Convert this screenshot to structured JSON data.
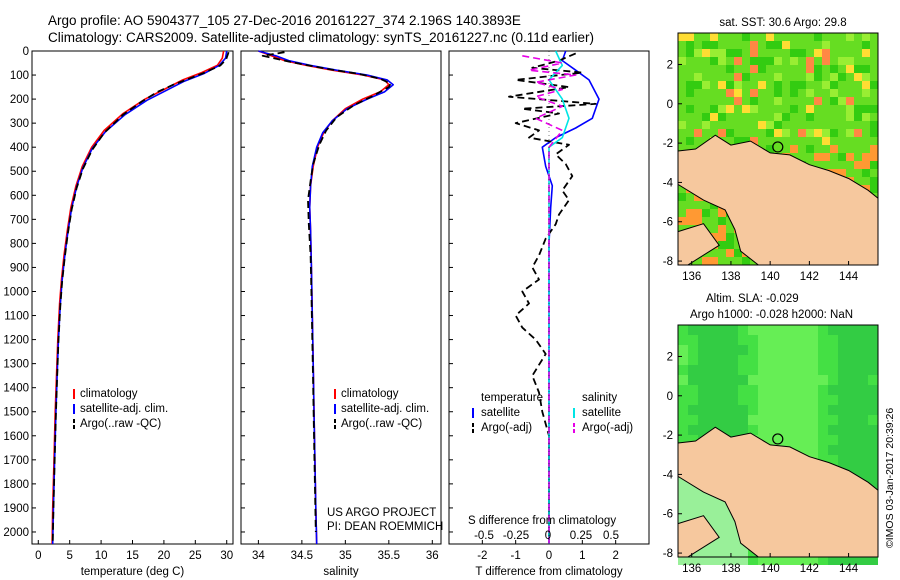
{
  "title": {
    "line1": "Argo profile: AO 5904377_105 27-Dec-2016 20161227_374 2.196S 140.3893E",
    "line2": "Climatology: CARS2009. Satellite-adjusted climatology: synTS_20161227.nc (0.11d earlier)"
  },
  "footer_stamp": "©IMOS 03-Jan-2017 20:39:26",
  "colors": {
    "climatology": "#ff0000",
    "satellite": "#0000ff",
    "argo": "#000000",
    "sal_satellite": "#00e5e5",
    "sal_argo": "#e600e6"
  },
  "depth_axis": {
    "ylim": [
      0,
      2050
    ],
    "ticks": [
      0,
      100,
      200,
      300,
      400,
      500,
      600,
      700,
      800,
      900,
      1000,
      1100,
      1200,
      1300,
      1400,
      1500,
      1600,
      1700,
      1800,
      1900,
      2000
    ]
  },
  "chart_data": [
    {
      "id": "temperature",
      "type": "line",
      "xlabel": "temperature (deg C)",
      "xlim": [
        -1,
        31
      ],
      "xticks": [
        0,
        5,
        10,
        15,
        20,
        25,
        30
      ],
      "legend": {
        "position": "lower-right",
        "entries": [
          "climatology",
          "satellite-adj. clim.",
          "Argo(..raw -QC)"
        ]
      },
      "series": [
        {
          "name": "climatology",
          "color": "#ff0000",
          "points": [
            [
              29.5,
              0
            ],
            [
              29.3,
              30
            ],
            [
              28.5,
              60
            ],
            [
              26,
              90
            ],
            [
              23,
              120
            ],
            [
              20,
              160
            ],
            [
              17,
              200
            ],
            [
              13.5,
              260
            ],
            [
              10.5,
              330
            ],
            [
              8.5,
              400
            ],
            [
              7,
              480
            ],
            [
              6,
              560
            ],
            [
              5.2,
              650
            ],
            [
              4.6,
              750
            ],
            [
              4.1,
              850
            ],
            [
              3.7,
              950
            ],
            [
              3.4,
              1050
            ],
            [
              3.1,
              1200
            ],
            [
              2.9,
              1350
            ],
            [
              2.7,
              1500
            ],
            [
              2.5,
              1700
            ],
            [
              2.3,
              1900
            ],
            [
              2.2,
              2050
            ]
          ]
        },
        {
          "name": "satellite-adj. clim.",
          "color": "#0000ff",
          "points": [
            [
              30,
              0
            ],
            [
              29.8,
              30
            ],
            [
              28.8,
              60
            ],
            [
              26.3,
              95
            ],
            [
              23.3,
              125
            ],
            [
              20.3,
              165
            ],
            [
              17.3,
              205
            ],
            [
              13.8,
              265
            ],
            [
              10.7,
              335
            ],
            [
              8.6,
              405
            ],
            [
              7.1,
              485
            ],
            [
              6.1,
              565
            ],
            [
              5.3,
              655
            ],
            [
              4.7,
              755
            ],
            [
              4.2,
              855
            ],
            [
              3.8,
              955
            ],
            [
              3.5,
              1055
            ],
            [
              3.2,
              1205
            ],
            [
              3,
              1355
            ],
            [
              2.8,
              1505
            ],
            [
              2.6,
              1705
            ],
            [
              2.4,
              1905
            ],
            [
              2.3,
              2050
            ]
          ]
        },
        {
          "name": "Argo(..raw -QC)",
          "color": "#000000",
          "points": [
            [
              30.3,
              5
            ],
            [
              29.9,
              35
            ],
            [
              29,
              60
            ],
            [
              26.5,
              90
            ],
            [
              24,
              115
            ],
            [
              21.5,
              140
            ],
            [
              19,
              170
            ],
            [
              16.5,
              210
            ],
            [
              13.5,
              265
            ],
            [
              10.5,
              340
            ],
            [
              8.6,
              410
            ],
            [
              7.1,
              490
            ],
            [
              6.1,
              570
            ],
            [
              5.3,
              660
            ],
            [
              4.7,
              760
            ],
            [
              4.2,
              860
            ],
            [
              3.8,
              960
            ],
            [
              3.5,
              1060
            ],
            [
              3.2,
              1210
            ],
            [
              3,
              1360
            ],
            [
              2.8,
              1510
            ],
            [
              2.6,
              1710
            ],
            [
              2.4,
              1910
            ],
            [
              2.3,
              2050
            ]
          ]
        }
      ]
    },
    {
      "id": "salinity",
      "type": "line",
      "xlabel": "salinity",
      "xlim": [
        33.8,
        36.1
      ],
      "xticks": [
        34,
        34.5,
        35,
        35.5,
        36
      ],
      "legend": {
        "position": "lower-right",
        "entries": [
          "climatology",
          "satellite-adj. clim.",
          "Argo(..raw -QC)"
        ]
      },
      "annotation": {
        "line1": "US ARGO PROJECT",
        "line2": "PI: DEAN ROEMMICH"
      },
      "series": [
        {
          "name": "climatology",
          "color": "#ff0000",
          "points": [
            [
              34,
              0
            ],
            [
              34.15,
              20
            ],
            [
              34.3,
              40
            ],
            [
              34.55,
              60
            ],
            [
              34.85,
              80
            ],
            [
              35.2,
              100
            ],
            [
              35.45,
              120
            ],
            [
              35.5,
              140
            ],
            [
              35.4,
              170
            ],
            [
              35.2,
              200
            ],
            [
              35,
              240
            ],
            [
              34.85,
              290
            ],
            [
              34.75,
              340
            ],
            [
              34.68,
              400
            ],
            [
              34.63,
              480
            ],
            [
              34.6,
              560
            ],
            [
              34.59,
              650
            ],
            [
              34.6,
              750
            ],
            [
              34.61,
              900
            ],
            [
              34.62,
              1100
            ],
            [
              34.63,
              1300
            ],
            [
              34.64,
              1500
            ],
            [
              34.65,
              1700
            ],
            [
              34.66,
              1900
            ],
            [
              34.67,
              2050
            ]
          ]
        },
        {
          "name": "satellite-adj. clim.",
          "color": "#0000ff",
          "points": [
            [
              34,
              0
            ],
            [
              34.2,
              20
            ],
            [
              34.35,
              40
            ],
            [
              34.6,
              60
            ],
            [
              34.9,
              80
            ],
            [
              35.25,
              100
            ],
            [
              35.48,
              120
            ],
            [
              35.55,
              140
            ],
            [
              35.45,
              170
            ],
            [
              35.25,
              200
            ],
            [
              35.02,
              240
            ],
            [
              34.85,
              290
            ],
            [
              34.74,
              340
            ],
            [
              34.67,
              400
            ],
            [
              34.62,
              480
            ],
            [
              34.6,
              560
            ],
            [
              34.59,
              650
            ],
            [
              34.6,
              750
            ],
            [
              34.61,
              900
            ],
            [
              34.62,
              1100
            ],
            [
              34.63,
              1300
            ],
            [
              34.64,
              1500
            ],
            [
              34.65,
              1700
            ],
            [
              34.66,
              1900
            ],
            [
              34.67,
              2050
            ]
          ]
        },
        {
          "name": "Argo(..raw -QC)",
          "color": "#000000",
          "points": [
            [
              34.3,
              5
            ],
            [
              34.05,
              20
            ],
            [
              34.3,
              40
            ],
            [
              34.5,
              55
            ],
            [
              34.8,
              75
            ],
            [
              35.15,
              95
            ],
            [
              35.4,
              115
            ],
            [
              35.52,
              135
            ],
            [
              35.5,
              150
            ],
            [
              35.3,
              190
            ],
            [
              35.1,
              225
            ],
            [
              34.9,
              275
            ],
            [
              34.78,
              330
            ],
            [
              34.7,
              390
            ],
            [
              34.63,
              470
            ],
            [
              34.6,
              540
            ],
            [
              34.57,
              620
            ],
            [
              34.58,
              720
            ],
            [
              34.6,
              850
            ],
            [
              34.61,
              1000
            ],
            [
              34.62,
              1200
            ],
            [
              34.63,
              1400
            ],
            [
              34.64,
              1600
            ],
            [
              34.65,
              1800
            ],
            [
              34.66,
              2000
            ]
          ]
        }
      ]
    },
    {
      "id": "difference",
      "type": "line",
      "xlabel": "T difference from climatology",
      "xlim": [
        -3,
        3
      ],
      "xticks": [
        -2,
        -1,
        0,
        1,
        2
      ],
      "top_axis": {
        "label": "S difference from climatology",
        "ticks": [
          "-0.5",
          "-0.25",
          "0",
          "0.25",
          "0.5"
        ]
      },
      "legend": {
        "position": "lower",
        "temperature_header": "temperature",
        "salinity_header": "salinity",
        "entries": [
          "satellite",
          "Argo(-adj)",
          "satellite",
          "Argo(-adj)"
        ]
      },
      "series": [
        {
          "name": "satellite",
          "group": "temperature",
          "color": "#0000ff",
          "points": [
            [
              0.5,
              0
            ],
            [
              0.4,
              40
            ],
            [
              0.8,
              80
            ],
            [
              1.2,
              120
            ],
            [
              1.5,
              200
            ],
            [
              1.3,
              280
            ],
            [
              0.8,
              320
            ],
            [
              0.2,
              360
            ],
            [
              -0.2,
              400
            ],
            [
              -0.1,
              480
            ],
            [
              0.1,
              560
            ],
            [
              0.05,
              650
            ],
            [
              0,
              800
            ],
            [
              0,
              1000
            ],
            [
              0,
              1500
            ],
            [
              0,
              2050
            ]
          ]
        },
        {
          "name": "Argo(-adj)",
          "group": "temperature",
          "color": "#000000",
          "points": [
            [
              0.8,
              10
            ],
            [
              0.3,
              40
            ],
            [
              -0.5,
              70
            ],
            [
              1,
              90
            ],
            [
              -1,
              120
            ],
            [
              0.6,
              150
            ],
            [
              -1.2,
              190
            ],
            [
              1.4,
              220
            ],
            [
              -0.8,
              240
            ],
            [
              0.3,
              260
            ],
            [
              -1,
              300
            ],
            [
              -0.3,
              330
            ],
            [
              -0.6,
              360
            ],
            [
              0.6,
              390
            ],
            [
              0.2,
              430
            ],
            [
              0.5,
              470
            ],
            [
              0.7,
              520
            ],
            [
              0.4,
              580
            ],
            [
              0.6,
              620
            ],
            [
              0.3,
              680
            ],
            [
              0.2,
              720
            ],
            [
              -0.1,
              780
            ],
            [
              -0.3,
              850
            ],
            [
              -0.5,
              900
            ],
            [
              -0.3,
              950
            ],
            [
              -0.8,
              1000
            ],
            [
              -0.6,
              1050
            ],
            [
              -1,
              1100
            ],
            [
              -0.8,
              1150
            ],
            [
              -0.4,
              1200
            ],
            [
              -0.1,
              1260
            ],
            [
              -0.5,
              1350
            ],
            [
              -0.3,
              1420
            ],
            [
              -0.2,
              1500
            ],
            [
              0,
              1600
            ],
            [
              0,
              2050
            ]
          ]
        },
        {
          "name": "satellite",
          "group": "salinity",
          "color": "#00e5e5",
          "points": [
            [
              0.05,
              0
            ],
            [
              0.1,
              60
            ],
            [
              0,
              120
            ],
            [
              0.1,
              200
            ],
            [
              0.15,
              280
            ],
            [
              0.1,
              360
            ],
            [
              0,
              400
            ],
            [
              0,
              500
            ],
            [
              0,
              700
            ],
            [
              0,
              1000
            ],
            [
              0,
              1500
            ],
            [
              0,
              2050
            ]
          ]
        },
        {
          "name": "Argo(-adj)",
          "group": "salinity",
          "color": "#e600e6",
          "points": [
            [
              -0.2,
              20
            ],
            [
              0.1,
              50
            ],
            [
              -0.15,
              80
            ],
            [
              0.2,
              100
            ],
            [
              -0.1,
              130
            ],
            [
              0.1,
              160
            ],
            [
              -0.1,
              190
            ],
            [
              0.1,
              230
            ],
            [
              -0.1,
              280
            ],
            [
              0.1,
              330
            ],
            [
              0,
              400
            ],
            [
              0,
              500
            ],
            [
              0,
              600
            ],
            [
              0,
              2050
            ]
          ]
        }
      ]
    },
    {
      "id": "sst-map",
      "type": "heatmap",
      "title": "sat. SST: 30.6 Argo: 29.8",
      "xlim": [
        135.3,
        145.5
      ],
      "ylim": [
        -8.2,
        3.6
      ],
      "xticks": [
        136,
        138,
        140,
        142,
        144
      ],
      "yticks": [
        2,
        0,
        -2,
        -4,
        -6,
        -8
      ],
      "marker": {
        "lon": 140.3893,
        "lat": -2.196
      }
    },
    {
      "id": "sla-map",
      "type": "heatmap",
      "title": "Altim. SLA: -0.029",
      "subtitle": "Argo h1000: -0.028 h2000: NaN",
      "xlim": [
        135.3,
        145.5
      ],
      "ylim": [
        -8.2,
        3.6
      ],
      "xticks": [
        136,
        138,
        140,
        142,
        144
      ],
      "yticks": [
        2,
        0,
        -2,
        -4,
        -6,
        -8
      ],
      "marker": {
        "lon": 140.3893,
        "lat": -2.196
      }
    }
  ]
}
